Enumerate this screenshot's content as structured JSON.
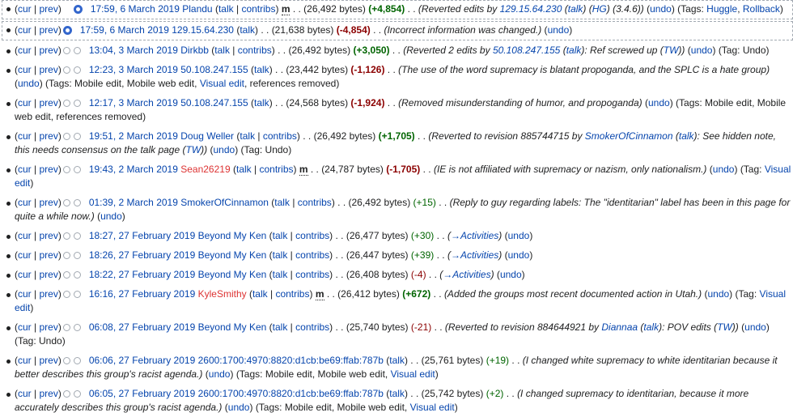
{
  "history": {
    "entries": [
      {
        "selected": true,
        "radio_left": "hidden",
        "radio_right": "checked",
        "timestamp": "17:59, 6 March 2019",
        "user": "Plandu",
        "user_red": false,
        "user_links": [
          "talk",
          "contribs"
        ],
        "minor": true,
        "bytes": "(26,492 bytes)",
        "diff": "(+4,854)",
        "diff_class": "pos",
        "comment": [
          {
            "t": "(Reverted edits by "
          },
          {
            "t": "129.15.64.230",
            "link": true
          },
          {
            "t": " ("
          },
          {
            "t": "talk",
            "link": true
          },
          {
            "t": ") ("
          },
          {
            "t": "HG",
            "link": true
          },
          {
            "t": ") (3.4.6))"
          }
        ],
        "undo": "undo",
        "tags": [
          {
            "t": "(Tags: "
          },
          {
            "t": "Huggle",
            "link": true
          },
          {
            "t": ", "
          },
          {
            "t": "Rollback",
            "link": true
          },
          {
            "t": ")"
          }
        ]
      },
      {
        "selected": true,
        "radio_left": "checked",
        "radio_right": "none",
        "timestamp": "17:59, 6 March 2019",
        "user": "129.15.64.230",
        "user_red": false,
        "user_links": [
          "talk"
        ],
        "minor": false,
        "bytes": "(21,638 bytes)",
        "diff": "(-4,854)",
        "diff_class": "neg",
        "comment": [
          {
            "t": "(Incorrect information was changed.)"
          }
        ],
        "undo": "undo",
        "tags": []
      },
      {
        "selected": false,
        "radio_left": "empty",
        "radio_right": "empty",
        "timestamp": "13:04, 3 March 2019",
        "user": "Dirkbb",
        "user_red": false,
        "user_links": [
          "talk",
          "contribs"
        ],
        "minor": false,
        "bytes": "(26,492 bytes)",
        "diff": "(+3,050)",
        "diff_class": "pos",
        "comment": [
          {
            "t": "(Reverted 2 edits by "
          },
          {
            "t": "50.108.247.155",
            "link": true
          },
          {
            "t": " ("
          },
          {
            "t": "talk",
            "link": true
          },
          {
            "t": "): Ref screwed up ("
          },
          {
            "t": "TW",
            "link": true
          },
          {
            "t": "))"
          }
        ],
        "undo": "undo",
        "tags": [
          {
            "t": "(Tag: Undo)"
          }
        ]
      },
      {
        "selected": false,
        "radio_left": "empty",
        "radio_right": "empty",
        "timestamp": "12:23, 3 March 2019",
        "user": "50.108.247.155",
        "user_red": false,
        "user_links": [
          "talk"
        ],
        "minor": false,
        "bytes": "(23,442 bytes)",
        "diff": "(-1,126)",
        "diff_class": "neg",
        "comment": [
          {
            "t": "(The use of the word supremacy is blatant propoganda, and the SPLC is a hate group)"
          }
        ],
        "undo": "undo",
        "tags": [
          {
            "t": "(Tags: Mobile edit, Mobile web edit, "
          },
          {
            "t": "Visual edit",
            "link": true
          },
          {
            "t": ", references removed)"
          }
        ]
      },
      {
        "selected": false,
        "radio_left": "empty",
        "radio_right": "empty",
        "timestamp": "12:17, 3 March 2019",
        "user": "50.108.247.155",
        "user_red": false,
        "user_links": [
          "talk"
        ],
        "minor": false,
        "bytes": "(24,568 bytes)",
        "diff": "(-1,924)",
        "diff_class": "neg",
        "comment": [
          {
            "t": "(Removed misunderstanding of humor, and propoganda)"
          }
        ],
        "undo": "undo",
        "tags": [
          {
            "t": "(Tags: Mobile edit, Mobile web edit, references removed)"
          }
        ]
      },
      {
        "selected": false,
        "radio_left": "empty",
        "radio_right": "empty",
        "timestamp": "19:51, 2 March 2019",
        "user": "Doug Weller",
        "user_red": false,
        "user_links": [
          "talk",
          "contribs"
        ],
        "minor": false,
        "bytes": "(26,492 bytes)",
        "diff": "(+1,705)",
        "diff_class": "pos",
        "comment": [
          {
            "t": "(Reverted to revision 885744715 by "
          },
          {
            "t": "SmokerOfCinnamon",
            "link": true
          },
          {
            "t": " ("
          },
          {
            "t": "talk",
            "link": true
          },
          {
            "t": "): See hidden note, this needs consensus on the talk page ("
          },
          {
            "t": "TW",
            "link": true
          },
          {
            "t": "))"
          }
        ],
        "undo": "undo",
        "tags": [
          {
            "t": "(Tag: Undo)"
          }
        ]
      },
      {
        "selected": false,
        "radio_left": "empty",
        "radio_right": "empty",
        "timestamp": "19:43, 2 March 2019",
        "user": "Sean26219",
        "user_red": true,
        "user_links": [
          "talk",
          "contribs"
        ],
        "minor": true,
        "bytes": "(24,787 bytes)",
        "diff": "(-1,705)",
        "diff_class": "neg",
        "comment": [
          {
            "t": "(IE is not affiliated with supremacy or nazism, only nationalism.)"
          }
        ],
        "undo": "undo",
        "tags": [
          {
            "t": "(Tag: "
          },
          {
            "t": "Visual edit",
            "link": true
          },
          {
            "t": ")"
          }
        ]
      },
      {
        "selected": false,
        "radio_left": "empty",
        "radio_right": "empty",
        "timestamp": "01:39, 2 March 2019",
        "user": "SmokerOfCinnamon",
        "user_red": false,
        "user_links": [
          "talk",
          "contribs"
        ],
        "minor": false,
        "bytes": "(26,492 bytes)",
        "diff": "(+15)",
        "diff_class": "posn",
        "comment": [
          {
            "t": "(Reply to guy regarding labels: The \"identitarian\" label has been in this page for quite a while now.)"
          }
        ],
        "undo": "undo",
        "tags": []
      },
      {
        "selected": false,
        "radio_left": "empty",
        "radio_right": "empty",
        "timestamp": "18:27, 27 February 2019",
        "user": "Beyond My Ken",
        "user_red": false,
        "user_links": [
          "talk",
          "contribs"
        ],
        "minor": false,
        "bytes": "(26,477 bytes)",
        "diff": "(+30)",
        "diff_class": "posn",
        "comment": [
          {
            "t": "("
          },
          {
            "t": "→Activities",
            "link": true
          },
          {
            "t": ")"
          }
        ],
        "undo": "undo",
        "tags": []
      },
      {
        "selected": false,
        "radio_left": "empty",
        "radio_right": "empty",
        "timestamp": "18:26, 27 February 2019",
        "user": "Beyond My Ken",
        "user_red": false,
        "user_links": [
          "talk",
          "contribs"
        ],
        "minor": false,
        "bytes": "(26,447 bytes)",
        "diff": "(+39)",
        "diff_class": "posn",
        "comment": [
          {
            "t": "("
          },
          {
            "t": "→Activities",
            "link": true
          },
          {
            "t": ")"
          }
        ],
        "undo": "undo",
        "tags": []
      },
      {
        "selected": false,
        "radio_left": "empty",
        "radio_right": "empty",
        "timestamp": "18:22, 27 February 2019",
        "user": "Beyond My Ken",
        "user_red": false,
        "user_links": [
          "talk",
          "contribs"
        ],
        "minor": false,
        "bytes": "(26,408 bytes)",
        "diff": "(-4)",
        "diff_class": "negn",
        "comment": [
          {
            "t": "("
          },
          {
            "t": "→Activities",
            "link": true
          },
          {
            "t": ")"
          }
        ],
        "undo": "undo",
        "tags": []
      },
      {
        "selected": false,
        "radio_left": "empty",
        "radio_right": "empty",
        "timestamp": "16:16, 27 February 2019",
        "user": "KyleSmithy",
        "user_red": true,
        "user_links": [
          "talk",
          "contribs"
        ],
        "minor": true,
        "bytes": "(26,412 bytes)",
        "diff": "(+672)",
        "diff_class": "pos",
        "comment": [
          {
            "t": "(Added the groups most recent documented action in Utah.)"
          }
        ],
        "undo": "undo",
        "tags": [
          {
            "t": "(Tag: "
          },
          {
            "t": "Visual edit",
            "link": true
          },
          {
            "t": ")"
          }
        ]
      },
      {
        "selected": false,
        "radio_left": "empty",
        "radio_right": "empty",
        "timestamp": "06:08, 27 February 2019",
        "user": "Beyond My Ken",
        "user_red": false,
        "user_links": [
          "talk",
          "contribs"
        ],
        "minor": false,
        "bytes": "(25,740 bytes)",
        "diff": "(-21)",
        "diff_class": "negn",
        "comment": [
          {
            "t": "(Reverted to revision 884644921 by "
          },
          {
            "t": "Diannaa",
            "link": true
          },
          {
            "t": " ("
          },
          {
            "t": "talk",
            "link": true
          },
          {
            "t": "): POV edits ("
          },
          {
            "t": "TW",
            "link": true
          },
          {
            "t": "))"
          }
        ],
        "undo": "undo",
        "tags": [
          {
            "t": "(Tag: Undo)"
          }
        ]
      },
      {
        "selected": false,
        "radio_left": "empty",
        "radio_right": "empty",
        "timestamp": "06:06, 27 February 2019",
        "user": "2600:1700:4970:8820:d1cb:be69:ffab:787b",
        "user_red": false,
        "user_links": [
          "talk"
        ],
        "minor": false,
        "bytes": "(25,761 bytes)",
        "diff": "(+19)",
        "diff_class": "posn",
        "comment": [
          {
            "t": "(I changed white supremacy to white identitarian because it better describes this group's racist agenda.)"
          }
        ],
        "undo": "undo",
        "tags": [
          {
            "t": "(Tags: Mobile edit, Mobile web edit, "
          },
          {
            "t": "Visual edit",
            "link": true
          },
          {
            "t": ")"
          }
        ]
      },
      {
        "selected": false,
        "radio_left": "empty",
        "radio_right": "empty",
        "timestamp": "06:05, 27 February 2019",
        "user": "2600:1700:4970:8820:d1cb:be69:ffab:787b",
        "user_red": false,
        "user_links": [
          "talk"
        ],
        "minor": false,
        "bytes": "(25,742 bytes)",
        "diff": "(+2)",
        "diff_class": "posn",
        "comment": [
          {
            "t": "(I changed supremacy to identitarian, because it more accurately describes this group's racist agenda.)"
          }
        ],
        "undo": "undo",
        "tags": [
          {
            "t": "(Tags: Mobile edit, Mobile web edit, "
          },
          {
            "t": "Visual edit",
            "link": true
          },
          {
            "t": ")"
          }
        ]
      }
    ],
    "labels": {
      "cur": "cur",
      "prev": "prev",
      "sep": " | ",
      "dots": " . . "
    },
    "colors": {
      "link": "#0645ad",
      "redlink": "#dd3333",
      "positive": "#006400",
      "negative": "#8b0000",
      "radio_checked": "#3366cc"
    }
  }
}
